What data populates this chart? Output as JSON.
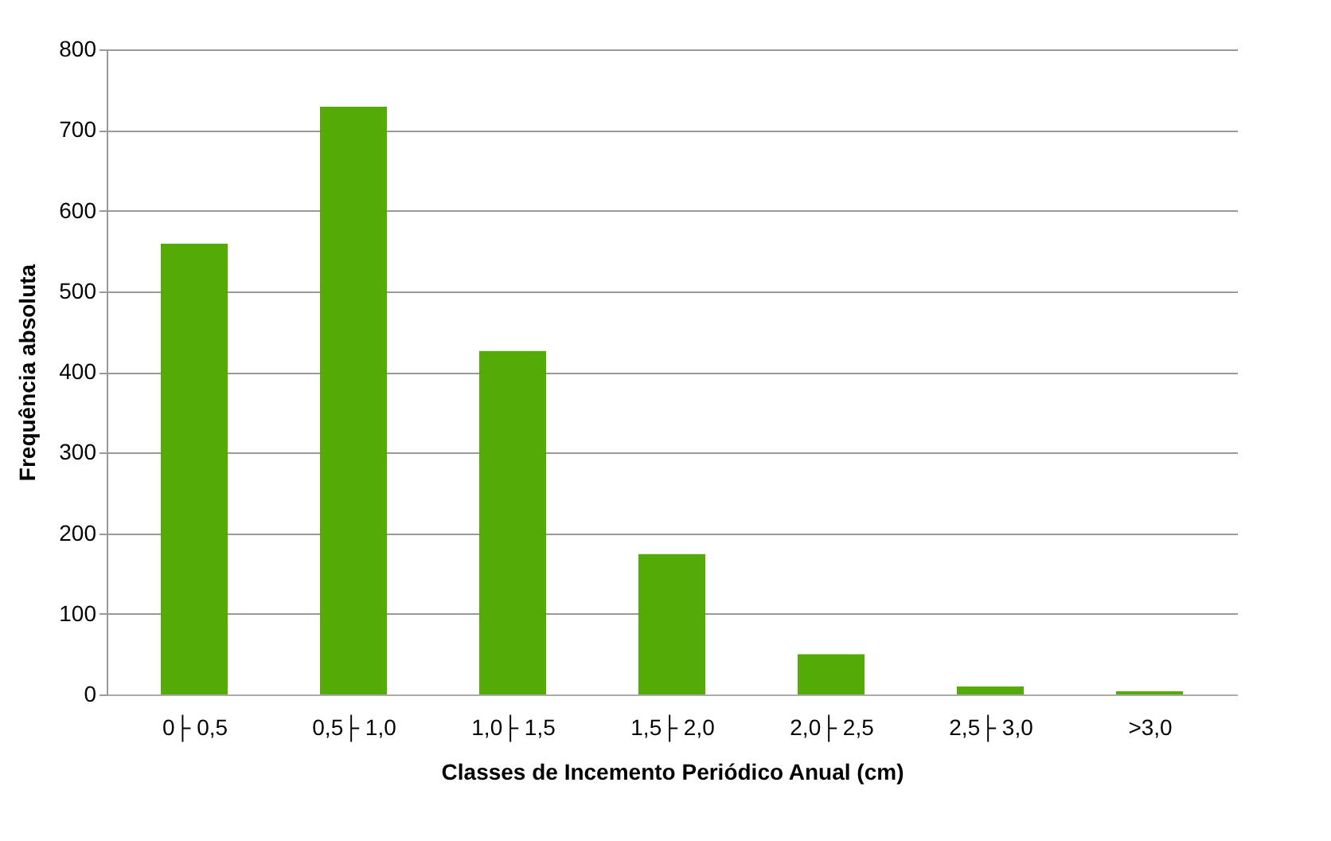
{
  "chart_data": {
    "type": "bar",
    "xlabel": "Classes de Incemento Periódico Anual (cm)",
    "ylabel": "Frequência absoluta",
    "categories": [
      "0├ 0,5",
      "0,5├ 1,0",
      "1,0├ 1,5",
      "1,5├ 2,0",
      "2,0├ 2,5",
      "2,5├ 3,0",
      ">3,0"
    ],
    "values": [
      559,
      729,
      426,
      174,
      50,
      10,
      4
    ],
    "color": "#55ab06",
    "ylim": [
      0,
      800
    ],
    "yticks": [
      0,
      100,
      200,
      300,
      400,
      500,
      600,
      700,
      800
    ],
    "grid": "y"
  }
}
